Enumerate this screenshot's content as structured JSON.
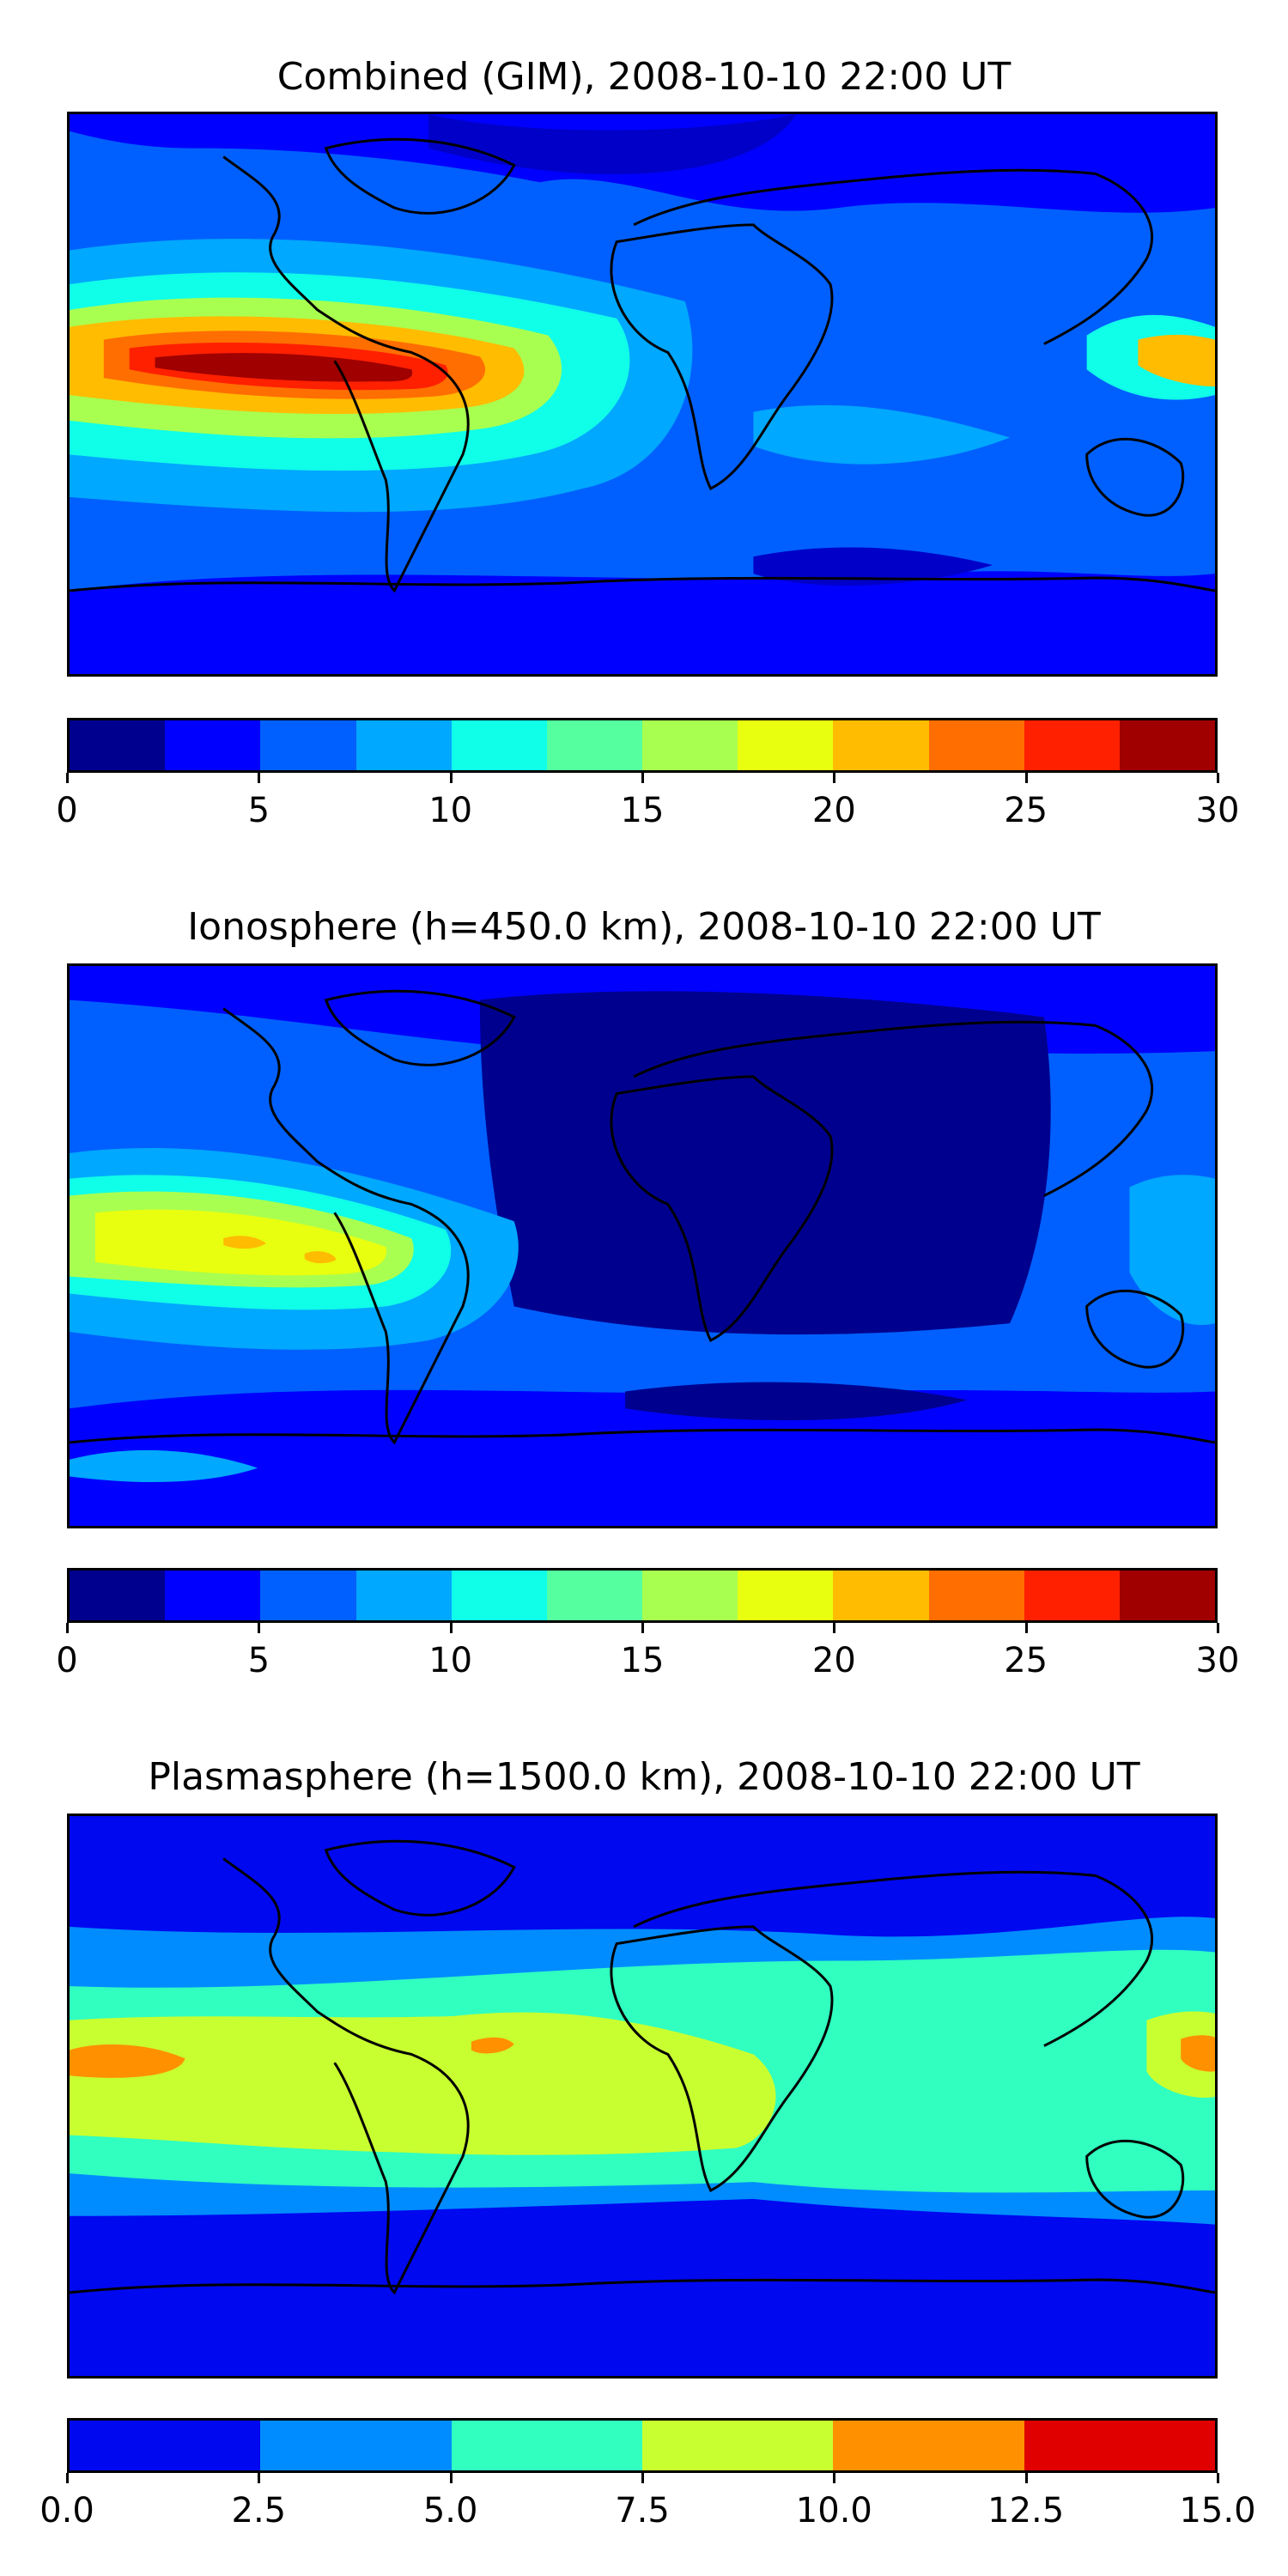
{
  "panels": [
    {
      "title": "Combined (GIM), 2008-10-10 22:00 UT",
      "colorbar": {
        "colors": [
          "#00008f",
          "#0000ff",
          "#0060ff",
          "#00a8ff",
          "#10ffe8",
          "#55ff9f",
          "#a8ff50",
          "#e8ff10",
          "#ffbc00",
          "#ff6e00",
          "#ff2000",
          "#a00000"
        ],
        "ticks": [
          "0",
          "5",
          "10",
          "15",
          "20",
          "25",
          "30"
        ]
      }
    },
    {
      "title": "Ionosphere  (h=450.0 km), 2008-10-10 22:00 UT",
      "colorbar": {
        "colors": [
          "#00008f",
          "#0000ff",
          "#0060ff",
          "#00a8ff",
          "#10ffe8",
          "#55ff9f",
          "#a8ff50",
          "#e8ff10",
          "#ffbc00",
          "#ff6e00",
          "#ff2000",
          "#a00000"
        ],
        "ticks": [
          "0",
          "5",
          "10",
          "15",
          "20",
          "25",
          "30"
        ]
      }
    },
    {
      "title": "Plasmasphere (h=1500.0 km), 2008-10-10 22:00 UT",
      "colorbar": {
        "colors": [
          "#0008f0",
          "#008cff",
          "#30ffc0",
          "#c8ff30",
          "#ff9000",
          "#e00000"
        ],
        "ticks": [
          "0.0",
          "2.5",
          "5.0",
          "7.5",
          "10.0",
          "12.5",
          "15.0"
        ]
      }
    }
  ]
}
